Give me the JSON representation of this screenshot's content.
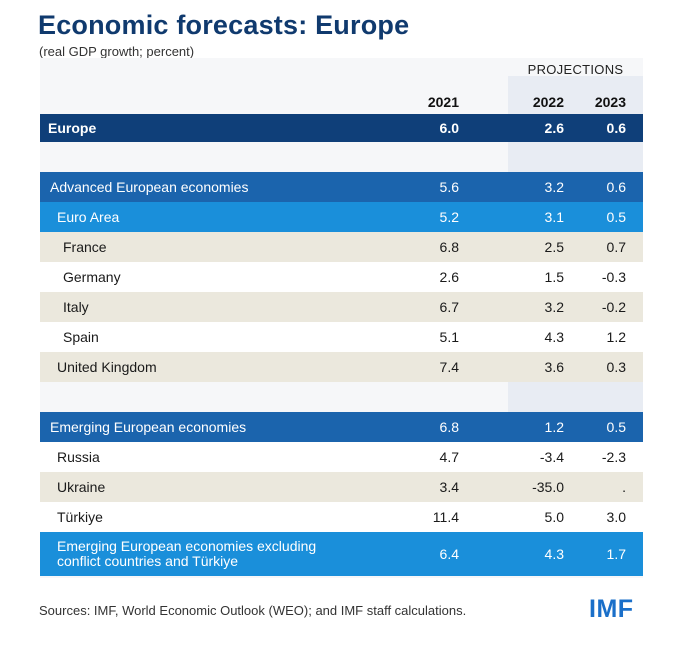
{
  "title": "Economic forecasts: Europe",
  "subtitle": "(real GDP growth; percent)",
  "projections_label": "PROJECTIONS",
  "source": "Sources: IMF, World Economic Outlook (WEO); and IMF staff calculations.",
  "logo_text": "IMF",
  "colors": {
    "title": "#103a6e",
    "europe_row": "#0f3f79",
    "group_row": "#1b64ad",
    "subgroup_row": "#1a8fda",
    "beige_row": "#ebe8dd",
    "projection_band": "#e8ecf3"
  },
  "chart_data": {
    "type": "table",
    "columns": [
      "2021",
      "2022",
      "2023"
    ],
    "projection_columns": [
      "2022",
      "2023"
    ],
    "rows": [
      {
        "name": "Europe",
        "values": [
          "6.0",
          "2.6",
          "0.6"
        ]
      },
      {
        "name": "Advanced European economies",
        "values": [
          "5.6",
          "3.2",
          "0.6"
        ]
      },
      {
        "name": "Euro Area",
        "values": [
          "5.2",
          "3.1",
          "0.5"
        ]
      },
      {
        "name": "France",
        "values": [
          "6.8",
          "2.5",
          "0.7"
        ]
      },
      {
        "name": "Germany",
        "values": [
          "2.6",
          "1.5",
          "-0.3"
        ]
      },
      {
        "name": "Italy",
        "values": [
          "6.7",
          "3.2",
          "-0.2"
        ]
      },
      {
        "name": "Spain",
        "values": [
          "5.1",
          "4.3",
          "1.2"
        ]
      },
      {
        "name": "United Kingdom",
        "values": [
          "7.4",
          "3.6",
          "0.3"
        ]
      },
      {
        "name": "Emerging European economies",
        "values": [
          "6.8",
          "1.2",
          "0.5"
        ]
      },
      {
        "name": "Russia",
        "values": [
          "4.7",
          "-3.4",
          "-2.3"
        ]
      },
      {
        "name": "Ukraine",
        "values": [
          "3.4",
          "-35.0",
          "."
        ]
      },
      {
        "name": "Türkiye",
        "values": [
          "11.4",
          "5.0",
          "3.0"
        ]
      },
      {
        "name": "Emerging European economies excluding conflict countries and Türkiye",
        "name_lines": [
          "Emerging European economies excluding",
          "conflict countries and Türkiye"
        ],
        "values": [
          "6.4",
          "4.3",
          "1.7"
        ]
      }
    ]
  }
}
